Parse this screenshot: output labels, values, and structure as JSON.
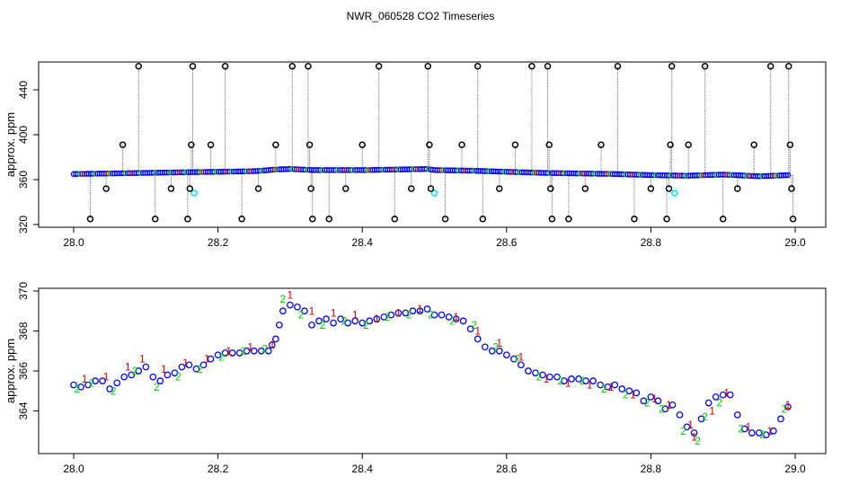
{
  "title": "NWR_060528  CO2 Timeseries",
  "colors": {
    "axis": "#000000",
    "marker_blue": "#0000ff",
    "marker_green": "#00cc00",
    "marker_red": "#cc0000",
    "marker_cyan": "#00e5ee",
    "outlier": "#000000",
    "spike_line": "#808080"
  },
  "chart_data": [
    {
      "type": "scatter",
      "name": "top-panel",
      "title": "NWR_060528  CO2 Timeseries",
      "xlabel": "",
      "ylabel": "approx. ppm",
      "xlim": [
        28.0,
        29.0
      ],
      "ylim": [
        320,
        460
      ],
      "x_ticks": [
        28.0,
        28.2,
        28.4,
        28.6,
        28.8,
        29.0
      ],
      "x_tick_labels": [
        "28.0",
        "28.2",
        "28.4",
        "28.6",
        "28.8",
        "29.0"
      ],
      "y_ticks": [
        320,
        360,
        400,
        440
      ],
      "y_tick_labels": [
        "320",
        "360",
        "400",
        "440"
      ],
      "baseline": {
        "x": [
          28.0,
          28.05,
          28.1,
          28.15,
          28.2,
          28.25,
          28.28,
          28.3,
          28.33,
          28.4,
          28.45,
          28.49,
          28.5,
          28.55,
          28.6,
          28.65,
          28.7,
          28.75,
          28.8,
          28.85,
          28.9,
          28.95,
          28.99
        ],
        "y": [
          365,
          365.5,
          366,
          366.5,
          367,
          367.5,
          369,
          369.5,
          368.5,
          368.5,
          369,
          369.5,
          368.5,
          368,
          367,
          366,
          365.5,
          365,
          364,
          363.5,
          364.5,
          363,
          364
        ]
      },
      "cyan_points": [
        {
          "x": 28.167,
          "y": 348
        },
        {
          "x": 28.5,
          "y": 348
        },
        {
          "x": 28.833,
          "y": 348
        }
      ],
      "outliers": [
        {
          "x": 28.023,
          "y": 325
        },
        {
          "x": 28.045,
          "y": 352
        },
        {
          "x": 28.068,
          "y": 391
        },
        {
          "x": 28.09,
          "y": 461
        },
        {
          "x": 28.113,
          "y": 325
        },
        {
          "x": 28.135,
          "y": 352
        },
        {
          "x": 28.158,
          "y": 325
        },
        {
          "x": 28.161,
          "y": 352
        },
        {
          "x": 28.163,
          "y": 391
        },
        {
          "x": 28.165,
          "y": 461
        },
        {
          "x": 28.19,
          "y": 391
        },
        {
          "x": 28.21,
          "y": 461
        },
        {
          "x": 28.233,
          "y": 325
        },
        {
          "x": 28.256,
          "y": 352
        },
        {
          "x": 28.28,
          "y": 391
        },
        {
          "x": 28.303,
          "y": 461
        },
        {
          "x": 28.325,
          "y": 461
        },
        {
          "x": 28.327,
          "y": 391
        },
        {
          "x": 28.329,
          "y": 352
        },
        {
          "x": 28.331,
          "y": 325
        },
        {
          "x": 28.354,
          "y": 325
        },
        {
          "x": 28.377,
          "y": 352
        },
        {
          "x": 28.4,
          "y": 391
        },
        {
          "x": 28.423,
          "y": 461
        },
        {
          "x": 28.445,
          "y": 325
        },
        {
          "x": 28.468,
          "y": 352
        },
        {
          "x": 28.491,
          "y": 461
        },
        {
          "x": 28.493,
          "y": 391
        },
        {
          "x": 28.495,
          "y": 352
        },
        {
          "x": 28.515,
          "y": 325
        },
        {
          "x": 28.538,
          "y": 391
        },
        {
          "x": 28.56,
          "y": 461
        },
        {
          "x": 28.567,
          "y": 325
        },
        {
          "x": 28.59,
          "y": 352
        },
        {
          "x": 28.612,
          "y": 391
        },
        {
          "x": 28.635,
          "y": 461
        },
        {
          "x": 28.657,
          "y": 461
        },
        {
          "x": 28.659,
          "y": 391
        },
        {
          "x": 28.661,
          "y": 352
        },
        {
          "x": 28.663,
          "y": 325
        },
        {
          "x": 28.686,
          "y": 325
        },
        {
          "x": 28.709,
          "y": 352
        },
        {
          "x": 28.731,
          "y": 391
        },
        {
          "x": 28.754,
          "y": 461
        },
        {
          "x": 28.777,
          "y": 325
        },
        {
          "x": 28.8,
          "y": 352
        },
        {
          "x": 28.822,
          "y": 325
        },
        {
          "x": 28.825,
          "y": 352
        },
        {
          "x": 28.827,
          "y": 391
        },
        {
          "x": 28.829,
          "y": 461
        },
        {
          "x": 28.852,
          "y": 391
        },
        {
          "x": 28.875,
          "y": 461
        },
        {
          "x": 28.9,
          "y": 325
        },
        {
          "x": 28.92,
          "y": 352
        },
        {
          "x": 28.943,
          "y": 391
        },
        {
          "x": 28.966,
          "y": 461
        },
        {
          "x": 28.991,
          "y": 461
        },
        {
          "x": 28.993,
          "y": 391
        },
        {
          "x": 28.995,
          "y": 352
        },
        {
          "x": 28.997,
          "y": 325
        }
      ]
    },
    {
      "type": "scatter",
      "name": "bottom-panel",
      "xlabel": "",
      "ylabel": "approx. ppm",
      "xlim": [
        28.0,
        29.0
      ],
      "ylim": [
        362,
        370
      ],
      "x_ticks": [
        28.0,
        28.2,
        28.4,
        28.6,
        28.8,
        29.0
      ],
      "x_tick_labels": [
        "28.0",
        "28.2",
        "28.4",
        "28.6",
        "28.8",
        "29.0"
      ],
      "y_ticks": [
        364,
        366,
        368,
        370
      ],
      "y_tick_labels": [
        "364",
        "366",
        "368",
        "370"
      ],
      "series": [
        {
          "name": "blue-o",
          "marker": "o",
          "x": [
            28.0,
            28.01,
            28.02,
            28.03,
            28.04,
            28.05,
            28.06,
            28.07,
            28.08,
            28.09,
            28.1,
            28.11,
            28.12,
            28.13,
            28.14,
            28.15,
            28.16,
            28.17,
            28.18,
            28.19,
            28.2,
            28.21,
            28.22,
            28.23,
            28.24,
            28.25,
            28.26,
            28.27,
            28.275,
            28.28,
            28.285,
            28.29,
            28.3,
            28.31,
            28.32,
            28.33,
            28.34,
            28.35,
            28.36,
            28.37,
            28.38,
            28.39,
            28.4,
            28.41,
            28.42,
            28.43,
            28.44,
            28.45,
            28.46,
            28.47,
            28.48,
            28.49,
            28.5,
            28.51,
            28.52,
            28.53,
            28.54,
            28.55,
            28.56,
            28.57,
            28.58,
            28.59,
            28.6,
            28.61,
            28.62,
            28.63,
            28.64,
            28.65,
            28.66,
            28.67,
            28.68,
            28.69,
            28.7,
            28.71,
            28.72,
            28.73,
            28.74,
            28.75,
            28.76,
            28.77,
            28.78,
            28.79,
            28.8,
            28.81,
            28.82,
            28.83,
            28.84,
            28.85,
            28.86,
            28.87,
            28.88,
            28.89,
            28.9,
            28.91,
            28.92,
            28.93,
            28.94,
            28.95,
            28.96,
            28.97,
            28.98,
            28.99
          ],
          "y": [
            365.3,
            365.2,
            365.3,
            365.5,
            365.5,
            365.1,
            365.4,
            365.7,
            365.8,
            366.0,
            366.2,
            365.7,
            365.5,
            365.8,
            365.9,
            366.2,
            366.3,
            366.1,
            366.3,
            366.6,
            366.8,
            366.9,
            366.9,
            366.9,
            367.0,
            367.0,
            367.0,
            367.0,
            367.3,
            367.6,
            368.3,
            369.0,
            369.3,
            369.2,
            369.0,
            368.3,
            368.5,
            368.6,
            368.4,
            368.6,
            368.4,
            368.5,
            368.4,
            368.5,
            368.6,
            368.7,
            368.8,
            368.9,
            368.9,
            369.0,
            369.0,
            369.1,
            368.8,
            368.8,
            368.7,
            368.6,
            368.5,
            368.1,
            367.6,
            367.2,
            367.0,
            367.0,
            366.8,
            366.6,
            366.3,
            366.0,
            365.9,
            365.8,
            365.7,
            365.7,
            365.5,
            365.6,
            365.6,
            365.5,
            365.5,
            365.3,
            365.2,
            365.3,
            365.1,
            365.0,
            364.9,
            364.5,
            364.7,
            364.5,
            364.1,
            364.3,
            363.8,
            363.2,
            362.9,
            363.6,
            364.4,
            364.7,
            364.8,
            364.8,
            363.8,
            363.1,
            362.9,
            362.9,
            362.8,
            363.0,
            363.6,
            364.2
          ]
        },
        {
          "name": "green-2",
          "marker": "2",
          "x": [
            28.005,
            28.025,
            28.055,
            28.085,
            28.115,
            28.145,
            28.175,
            28.205,
            28.235,
            28.265,
            28.29,
            28.315,
            28.345,
            28.375,
            28.405,
            28.435,
            28.465,
            28.495,
            28.525,
            28.555,
            28.585,
            28.615,
            28.645,
            28.675,
            28.705,
            28.735,
            28.765,
            28.795,
            28.815,
            28.845,
            28.865,
            28.875,
            28.895,
            28.925,
            28.955,
            28.985
          ],
          "y": [
            365.1,
            365.4,
            365.0,
            366.0,
            365.2,
            365.7,
            366.1,
            366.7,
            367.0,
            367.1,
            369.6,
            368.8,
            368.3,
            368.5,
            368.3,
            368.7,
            368.8,
            368.8,
            368.5,
            368.3,
            367.2,
            366.6,
            365.7,
            365.5,
            365.5,
            365.1,
            364.8,
            364.4,
            364.1,
            363.0,
            362.5,
            363.7,
            364.4,
            363.1,
            362.8,
            364.1
          ]
        },
        {
          "name": "red-1",
          "marker": "1",
          "x": [
            28.015,
            28.045,
            28.075,
            28.095,
            28.125,
            28.155,
            28.185,
            28.215,
            28.245,
            28.275,
            28.3,
            28.33,
            28.36,
            28.39,
            28.42,
            28.45,
            28.48,
            28.53,
            28.56,
            28.59,
            28.62,
            28.655,
            28.685,
            28.715,
            28.745,
            28.775,
            28.805,
            28.825,
            28.855,
            28.86,
            28.885,
            28.905,
            28.935,
            28.965,
            28.99
          ],
          "y": [
            365.6,
            365.7,
            366.2,
            366.6,
            366.1,
            366.4,
            366.6,
            367.0,
            367.2,
            367.3,
            369.8,
            369.0,
            368.9,
            368.8,
            368.6,
            368.9,
            369.1,
            368.7,
            368.0,
            367.4,
            366.7,
            365.6,
            365.4,
            365.3,
            365.2,
            364.8,
            364.6,
            364.3,
            363.3,
            362.7,
            364.0,
            364.9,
            363.2,
            363.0,
            364.3
          ]
        }
      ]
    }
  ]
}
